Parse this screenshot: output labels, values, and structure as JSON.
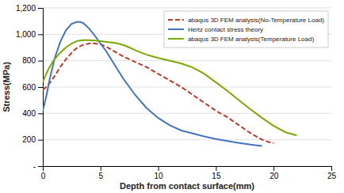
{
  "chart_data": {
    "type": "line",
    "xlabel": "Depth from contact surface(mm)",
    "ylabel": "Stress(MPa)",
    "xlim": [
      0,
      25
    ],
    "ylim": [
      0,
      1200
    ],
    "xticks": [
      0,
      5,
      10,
      15,
      20,
      25
    ],
    "yticks": [
      {
        "value": 0,
        "label": "-"
      },
      200,
      400,
      600,
      800,
      {
        "value": 1000,
        "label": "1,000"
      },
      {
        "value": 1200,
        "label": "1,200"
      }
    ],
    "grid": "y",
    "legend": "upper right",
    "series": [
      {
        "name": "abaqus 3D FEM analysis(No-Temperature Load)",
        "color": "#c0392b",
        "line_style": "dashed",
        "x": [
          0,
          0.3,
          0.6,
          1.0,
          1.5,
          2.0,
          2.5,
          3.0,
          3.5,
          4.0,
          4.5,
          5.0,
          5.5,
          6.0,
          7.0,
          8.0,
          9.0,
          10.0,
          11.0,
          12.0,
          13.0,
          14.0,
          15.0,
          16.0,
          17.0,
          18.0,
          19.0,
          19.5,
          20.0
        ],
        "values": [
          580,
          600,
          630,
          680,
          750,
          810,
          860,
          900,
          920,
          930,
          930,
          925,
          905,
          880,
          830,
          790,
          750,
          700,
          650,
          600,
          540,
          480,
          420,
          370,
          310,
          250,
          200,
          185,
          175
        ]
      },
      {
        "name": "Hertz contact stress theory",
        "color": "#4472c4",
        "line_style": "solid",
        "x": [
          0,
          0.3,
          0.6,
          1.0,
          1.5,
          2.0,
          2.5,
          3.0,
          3.3,
          3.5,
          4.0,
          4.5,
          5.0,
          5.5,
          6.0,
          7.0,
          8.0,
          9.0,
          10.0,
          11.0,
          12.0,
          13.0,
          14.0,
          15.0,
          16.0,
          17.0,
          18.0,
          18.5,
          19.0
        ],
        "values": [
          420,
          530,
          660,
          810,
          940,
          1030,
          1080,
          1095,
          1092,
          1085,
          1045,
          990,
          930,
          870,
          800,
          660,
          540,
          440,
          365,
          310,
          270,
          248,
          225,
          205,
          190,
          175,
          163,
          158,
          153
        ]
      },
      {
        "name": "abaqus 3D FEM analysis(Temperature Load)",
        "color": "#7aaa00",
        "line_style": "solid",
        "x": [
          0,
          0.3,
          0.6,
          1.0,
          1.5,
          2.0,
          2.5,
          3.0,
          3.5,
          4.0,
          4.5,
          5.0,
          5.5,
          6.0,
          6.5,
          7.0,
          7.5,
          8.0,
          8.5,
          9.0,
          9.5,
          10.0,
          11.0,
          12.0,
          13.0,
          14.0,
          15.0,
          16.0,
          17.0,
          18.0,
          19.0,
          20.0,
          21.0,
          22.0
        ],
        "values": [
          640,
          700,
          755,
          810,
          860,
          900,
          930,
          950,
          955,
          955,
          952,
          948,
          942,
          938,
          930,
          918,
          900,
          880,
          862,
          845,
          832,
          820,
          800,
          778,
          748,
          700,
          635,
          570,
          500,
          430,
          365,
          305,
          258,
          232
        ]
      }
    ]
  }
}
